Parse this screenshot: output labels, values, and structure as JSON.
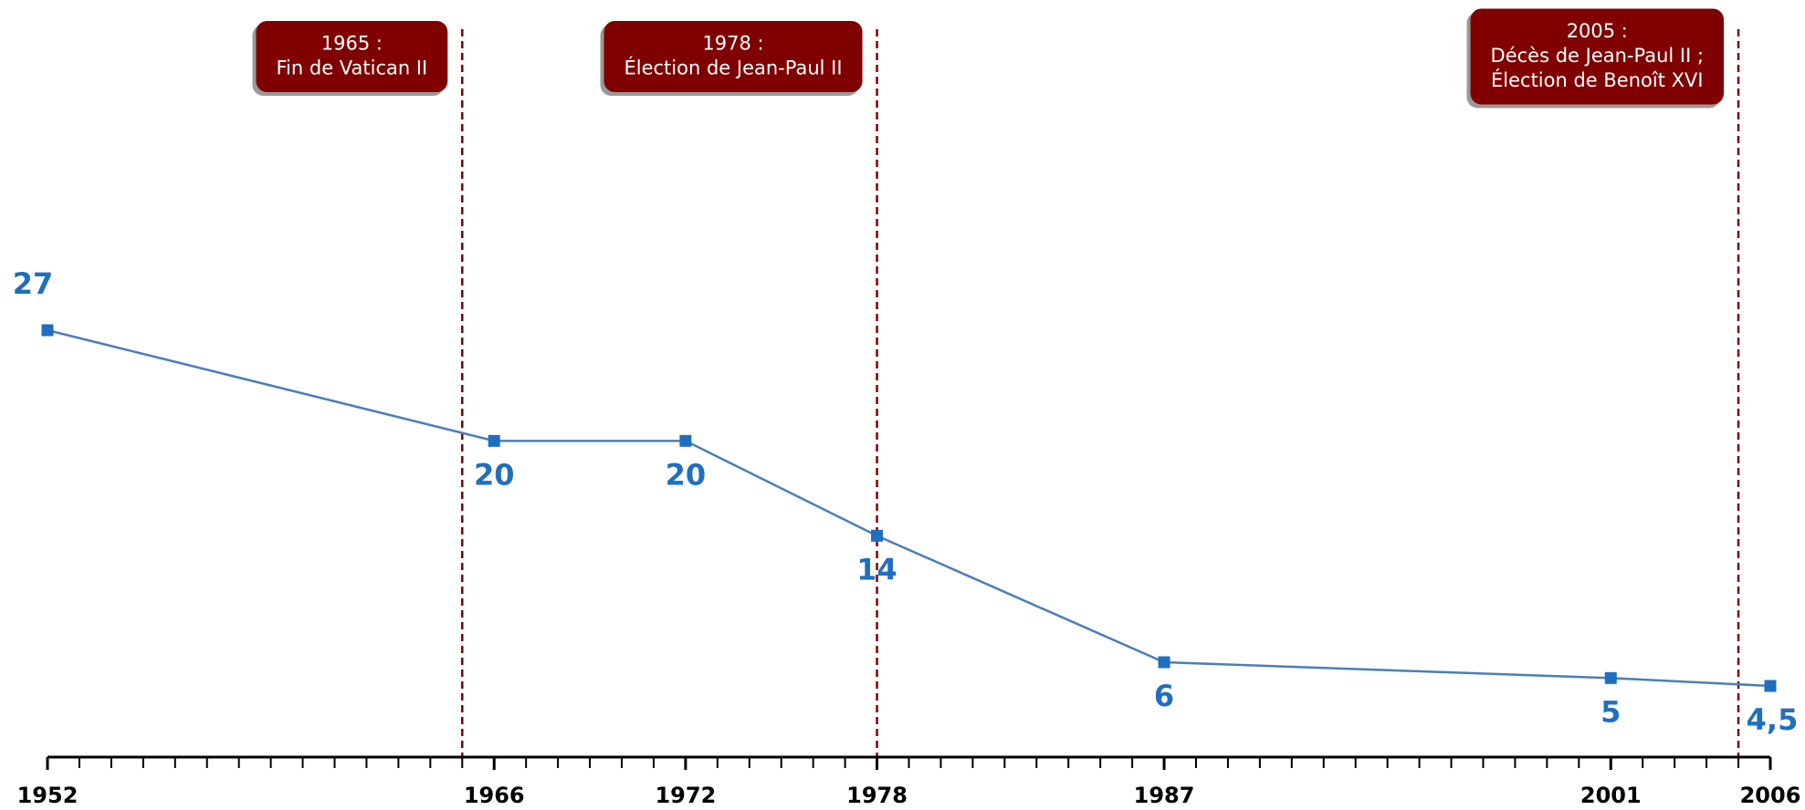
{
  "chart_data": {
    "type": "line",
    "x": [
      1952,
      1966,
      1972,
      1978,
      1987,
      2001,
      2006
    ],
    "series": [
      {
        "color": "#1f6fc0",
        "values": [
          27,
          20,
          20,
          14,
          6,
          5,
          4.5
        ],
        "value_labels": [
          "27",
          "20",
          "20",
          "14",
          "6",
          "5",
          "4,5"
        ]
      }
    ],
    "xlim": [
      1952,
      2006
    ],
    "xticks": [
      1952,
      1966,
      1972,
      1978,
      1987,
      2001,
      2006
    ],
    "ylim": [
      0,
      27
    ],
    "annotations": [
      {
        "x": 1965,
        "text": [
          "1965 :",
          "Fin de Vatican II"
        ]
      },
      {
        "x": 1978,
        "text": [
          "1978 :",
          "Élection de Jean-Paul II"
        ]
      },
      {
        "x": 2005,
        "text": [
          "2005 :",
          "Décès de Jean-Paul II ;",
          "Élection de Benoît XVI"
        ]
      }
    ],
    "annotation_color": "#800000"
  }
}
